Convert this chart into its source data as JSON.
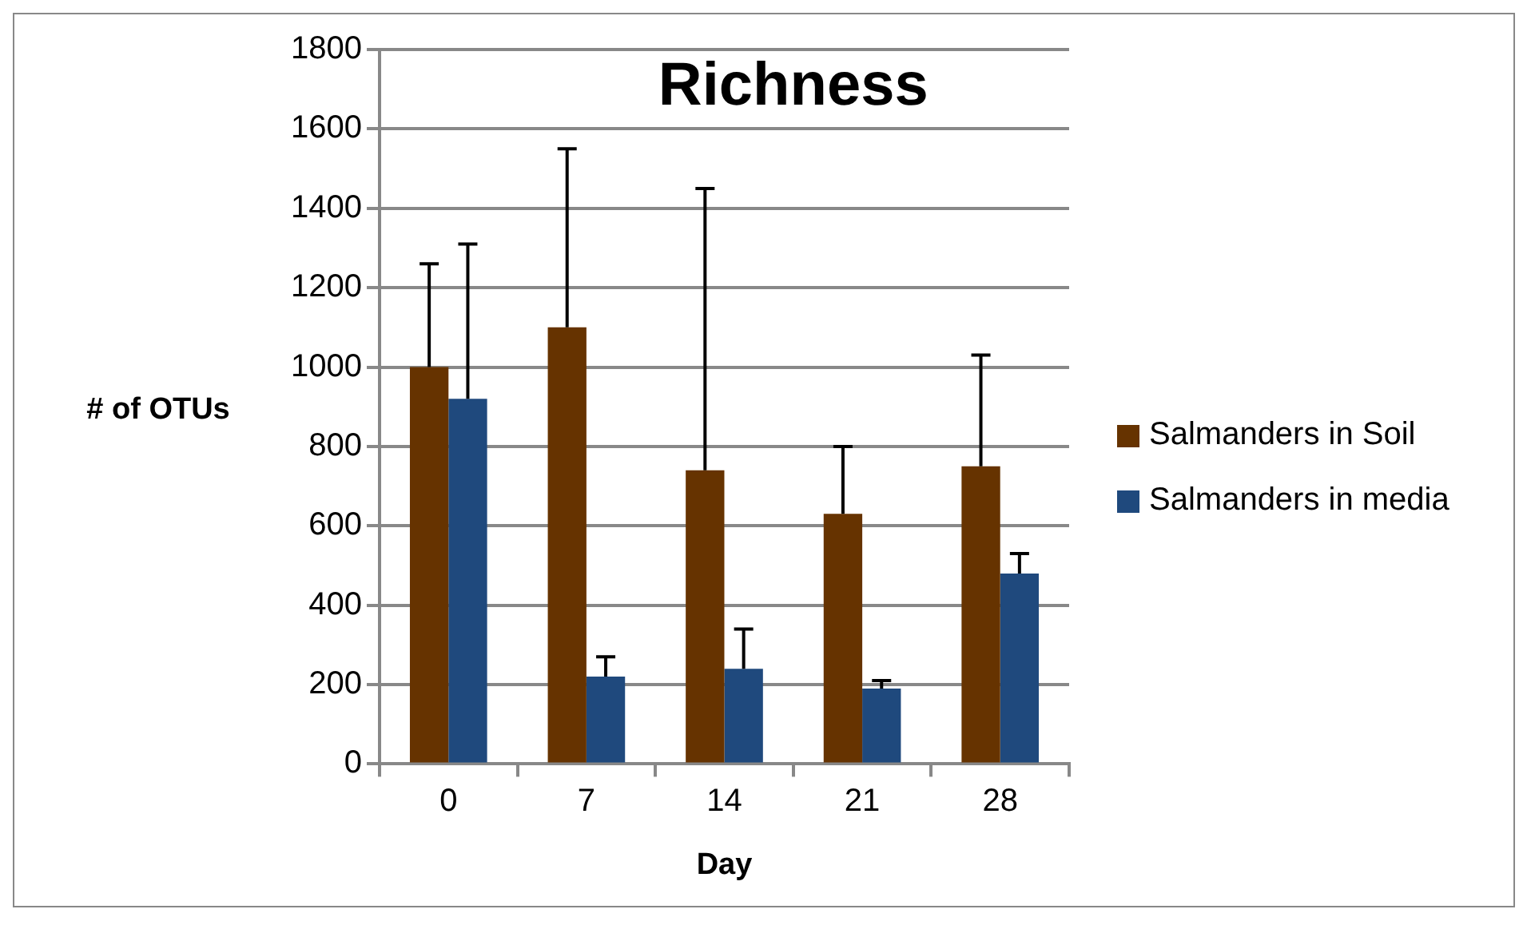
{
  "chart_data": {
    "type": "bar",
    "title": "Richness",
    "xlabel": "Day",
    "ylabel": "# of OTUs",
    "categories": [
      "0",
      "7",
      "14",
      "21",
      "28"
    ],
    "series": [
      {
        "name": "Salmanders in Soil",
        "color": "#663300",
        "values": [
          1000,
          1100,
          740,
          630,
          750
        ],
        "errors": [
          [
            1000,
            1260
          ],
          [
            1100,
            1550
          ],
          [
            740,
            1450
          ],
          [
            630,
            800
          ],
          [
            750,
            1030
          ]
        ]
      },
      {
        "name": "Salmanders in media",
        "color": "#1f497d",
        "values": [
          920,
          220,
          240,
          190,
          480
        ],
        "errors": [
          [
            920,
            1310
          ],
          [
            220,
            270
          ],
          [
            240,
            340
          ],
          [
            190,
            210
          ],
          [
            480,
            530
          ]
        ]
      }
    ],
    "ylim": [
      0,
      1800
    ],
    "yticks": [
      0,
      200,
      400,
      600,
      800,
      1000,
      1200,
      1400,
      1600,
      1800
    ],
    "grid": "y",
    "legend": "right"
  }
}
